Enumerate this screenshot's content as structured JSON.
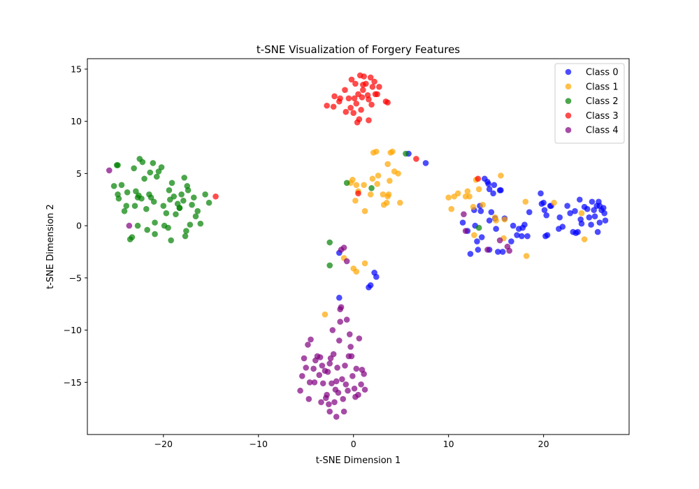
{
  "chart_data": {
    "type": "scatter",
    "title": "t-SNE Visualization of Forgery Features",
    "xlabel": "t-SNE Dimension 1",
    "ylabel": "t-SNE Dimension 2",
    "xlim": [
      -28,
      29
    ],
    "ylim": [
      -20,
      16
    ],
    "xticks": [
      -20,
      -10,
      0,
      10,
      20
    ],
    "yticks": [
      -15,
      -10,
      -5,
      0,
      5,
      10,
      15
    ],
    "grid": false,
    "legend_position": "top-right",
    "series": [
      {
        "name": "Class 0",
        "color": "#0000ff",
        "points": [
          [
            11.5,
            0.3
          ],
          [
            12.0,
            -0.5
          ],
          [
            12.3,
            -2.7
          ],
          [
            12.7,
            1.5
          ],
          [
            12.8,
            0.0
          ],
          [
            13.0,
            -1.5
          ],
          [
            13.1,
            -2.3
          ],
          [
            13.3,
            1.9
          ],
          [
            13.5,
            -1.1
          ],
          [
            13.4,
            1.4
          ],
          [
            13.8,
            4.5
          ],
          [
            14.1,
            4.2
          ],
          [
            14.2,
            4.0
          ],
          [
            14.3,
            3.5
          ],
          [
            14.3,
            0.5
          ],
          [
            14.5,
            1.3
          ],
          [
            14.7,
            3.1
          ],
          [
            14.8,
            3.9
          ],
          [
            14.9,
            0.7
          ],
          [
            15.0,
            -0.3
          ],
          [
            15.4,
            3.4
          ],
          [
            15.5,
            3.4
          ],
          [
            15.2,
            -2.5
          ],
          [
            15.7,
            -2.5
          ],
          [
            14.3,
            -2.3
          ],
          [
            15.9,
            0.7
          ],
          [
            16.6,
            -1.5
          ],
          [
            16.8,
            0.0
          ],
          [
            17.2,
            -0.9
          ],
          [
            17.4,
            -0.3
          ],
          [
            17.8,
            -0.2
          ],
          [
            18.0,
            0.1
          ],
          [
            17.7,
            -1.0
          ],
          [
            18.3,
            -1.0
          ],
          [
            18.5,
            1.3
          ],
          [
            19.7,
            3.1
          ],
          [
            19.8,
            2.1
          ],
          [
            20.0,
            2.2
          ],
          [
            20.1,
            1.5
          ],
          [
            20.3,
            1.0
          ],
          [
            20.4,
            -0.9
          ],
          [
            20.2,
            -1.0
          ],
          [
            20.7,
            1.9
          ],
          [
            20.8,
            1.9
          ],
          [
            21.6,
            -0.3
          ],
          [
            21.7,
            0.8
          ],
          [
            22.0,
            -0.1
          ],
          [
            22.5,
            1.9
          ],
          [
            22.8,
            1.2
          ],
          [
            23.1,
            -0.6
          ],
          [
            23.4,
            -0.7
          ],
          [
            23.3,
            1.4
          ],
          [
            23.6,
            -0.6
          ],
          [
            23.8,
            2.5
          ],
          [
            23.9,
            0.6
          ],
          [
            24.0,
            0.2
          ],
          [
            24.3,
            1.8
          ],
          [
            24.6,
            1.6
          ],
          [
            24.8,
            0.8
          ],
          [
            25.0,
            0.1
          ],
          [
            25.1,
            2.3
          ],
          [
            25.3,
            1.5
          ],
          [
            25.4,
            0.9
          ],
          [
            25.6,
            1.9
          ],
          [
            25.7,
            -0.6
          ],
          [
            25.8,
            2.3
          ],
          [
            25.9,
            0.3
          ],
          [
            26.1,
            1.5
          ],
          [
            26.3,
            1.7
          ],
          [
            26.4,
            1.2
          ],
          [
            26.5,
            0.5
          ],
          [
            25.9,
            1.9
          ],
          [
            -1.5,
            -6.9
          ],
          [
            -1.5,
            -2.6
          ],
          [
            1.6,
            -5.9
          ],
          [
            1.8,
            -5.7
          ],
          [
            2.2,
            -4.5
          ],
          [
            2.4,
            -4.9
          ],
          [
            5.8,
            6.9
          ],
          [
            7.6,
            6.0
          ]
        ]
      },
      {
        "name": "Class 1",
        "color": "#ffa500",
        "points": [
          [
            -0.3,
            4.1
          ],
          [
            -0.1,
            4.4
          ],
          [
            0.2,
            2.4
          ],
          [
            0.3,
            3.9
          ],
          [
            0.5,
            3.3
          ],
          [
            1.1,
            3.9
          ],
          [
            1.2,
            1.4
          ],
          [
            1.8,
            3.0
          ],
          [
            2.0,
            4.5
          ],
          [
            2.1,
            7.0
          ],
          [
            2.4,
            7.1
          ],
          [
            2.5,
            4.0
          ],
          [
            2.6,
            4.8
          ],
          [
            3.1,
            3.0
          ],
          [
            3.2,
            2.0
          ],
          [
            3.5,
            2.2
          ],
          [
            3.6,
            2.8
          ],
          [
            3.7,
            3.0
          ],
          [
            3.8,
            4.3
          ],
          [
            3.9,
            7.0
          ],
          [
            4.1,
            7.1
          ],
          [
            4.3,
            5.2
          ],
          [
            4.7,
            5.0
          ],
          [
            4.9,
            2.2
          ],
          [
            3.6,
            5.9
          ],
          [
            10.0,
            2.7
          ],
          [
            10.3,
            1.6
          ],
          [
            10.6,
            2.8
          ],
          [
            11.0,
            3.1
          ],
          [
            11.8,
            2.8
          ],
          [
            12.0,
            3.3
          ],
          [
            12.2,
            2.8
          ],
          [
            12.6,
            1.8
          ],
          [
            12.9,
            4.4
          ],
          [
            13.2,
            3.5
          ],
          [
            13.6,
            2.0
          ],
          [
            14.9,
            0.8
          ],
          [
            15.0,
            0.5
          ],
          [
            15.5,
            4.8
          ],
          [
            15.8,
            -1.2
          ],
          [
            15.9,
            0.6
          ],
          [
            18.1,
            2.3
          ],
          [
            18.2,
            -2.9
          ],
          [
            21.1,
            2.2
          ],
          [
            24.0,
            1.2
          ],
          [
            24.3,
            -1.3
          ],
          [
            -3.0,
            -8.5
          ],
          [
            -1.0,
            -3.1
          ],
          [
            0.0,
            -4.1
          ],
          [
            0.3,
            -4.4
          ],
          [
            1.2,
            -3.6
          ],
          [
            12.7,
            -0.9
          ]
        ]
      },
      {
        "name": "Class 2",
        "color": "#008000",
        "points": [
          [
            -25.2,
            3.8
          ],
          [
            -24.9,
            5.8
          ],
          [
            -24.8,
            3.0
          ],
          [
            -24.7,
            2.6
          ],
          [
            -24.4,
            3.9
          ],
          [
            -24.1,
            1.4
          ],
          [
            -23.9,
            1.9
          ],
          [
            -23.8,
            3.2
          ],
          [
            -23.5,
            -1.3
          ],
          [
            -23.3,
            -1.1
          ],
          [
            -23.1,
            5.5
          ],
          [
            -23.0,
            1.9
          ],
          [
            -22.9,
            3.3
          ],
          [
            -22.6,
            2.9
          ],
          [
            -22.7,
            0.0
          ],
          [
            -22.5,
            6.4
          ],
          [
            -22.3,
            2.6
          ],
          [
            -22.2,
            6.1
          ],
          [
            -22.0,
            4.5
          ],
          [
            -21.8,
            1.6
          ],
          [
            -21.7,
            -0.4
          ],
          [
            -21.5,
            3.0
          ],
          [
            -21.4,
            5.1
          ],
          [
            -21.3,
            2.7
          ],
          [
            -21.1,
            6.0
          ],
          [
            -21.0,
            2.3
          ],
          [
            -20.9,
            0.3
          ],
          [
            -20.9,
            -0.8
          ],
          [
            -20.7,
            4.7
          ],
          [
            -20.5,
            5.2
          ],
          [
            -20.2,
            5.6
          ],
          [
            -20.0,
            1.9
          ],
          [
            -19.9,
            0.0
          ],
          [
            -19.7,
            1.2
          ],
          [
            -19.5,
            -0.2
          ],
          [
            -19.4,
            3.4
          ],
          [
            -19.3,
            2.5
          ],
          [
            -19.2,
            -1.4
          ],
          [
            -19.1,
            4.1
          ],
          [
            -18.9,
            2.8
          ],
          [
            -18.7,
            1.1
          ],
          [
            -18.5,
            2.1
          ],
          [
            -18.3,
            1.7
          ],
          [
            -18.1,
            3.0
          ],
          [
            -17.9,
            2.4
          ],
          [
            -17.8,
            4.6
          ],
          [
            -17.7,
            -1.0
          ],
          [
            -17.6,
            -0.5
          ],
          [
            -17.5,
            3.8
          ],
          [
            -17.4,
            3.4
          ],
          [
            -17.2,
            0.1
          ],
          [
            -17.0,
            2.0
          ],
          [
            -16.8,
            2.7
          ],
          [
            -16.6,
            0.9
          ],
          [
            -16.4,
            1.4
          ],
          [
            -16.1,
            0.2
          ],
          [
            -15.6,
            3.0
          ],
          [
            -15.2,
            2.2
          ],
          [
            -18.3,
            1.7
          ],
          [
            -22.7,
            2.7
          ],
          [
            -24.8,
            5.8
          ],
          [
            -2.5,
            -1.6
          ],
          [
            -2.5,
            -3.8
          ],
          [
            -0.7,
            4.1
          ],
          [
            1.9,
            3.6
          ],
          [
            5.5,
            6.9
          ],
          [
            13.2,
            -0.2
          ]
        ]
      },
      {
        "name": "Class 3",
        "color": "#ff0000",
        "points": [
          [
            -2.8,
            11.5
          ],
          [
            -2.1,
            11.4
          ],
          [
            -2.0,
            12.4
          ],
          [
            -1.5,
            11.9
          ],
          [
            -1.4,
            12.2
          ],
          [
            -0.9,
            13.0
          ],
          [
            -0.8,
            10.9
          ],
          [
            -0.5,
            12.2
          ],
          [
            -0.3,
            11.3
          ],
          [
            -0.2,
            14.0
          ],
          [
            0.0,
            10.8
          ],
          [
            0.1,
            12.2
          ],
          [
            0.2,
            13.6
          ],
          [
            0.3,
            11.7
          ],
          [
            0.4,
            9.9
          ],
          [
            0.5,
            12.6
          ],
          [
            0.6,
            10.2
          ],
          [
            0.7,
            14.4
          ],
          [
            0.8,
            11.1
          ],
          [
            0.9,
            12.3
          ],
          [
            1.0,
            13.0
          ],
          [
            1.1,
            14.3
          ],
          [
            1.3,
            13.6
          ],
          [
            1.5,
            12.5
          ],
          [
            1.6,
            12.1
          ],
          [
            1.8,
            14.2
          ],
          [
            1.9,
            11.6
          ],
          [
            2.0,
            13.3
          ],
          [
            2.2,
            13.8
          ],
          [
            2.3,
            12.6
          ],
          [
            2.5,
            12.6
          ],
          [
            2.7,
            13.3
          ],
          [
            3.4,
            11.9
          ],
          [
            3.6,
            11.8
          ],
          [
            1.6,
            10.1
          ],
          [
            0.5,
            3.1
          ],
          [
            6.6,
            6.4
          ],
          [
            13.1,
            4.5
          ],
          [
            -14.5,
            2.8
          ],
          [
            1.0,
            13.5
          ]
        ]
      },
      {
        "name": "Class 4",
        "color": "#800080",
        "points": [
          [
            -25.7,
            5.3
          ],
          [
            -23.6,
            -0.0
          ],
          [
            -1.3,
            -2.3
          ],
          [
            -1.0,
            -2.1
          ],
          [
            -0.7,
            -3.4
          ],
          [
            11.6,
            1.1
          ],
          [
            11.8,
            -0.5
          ],
          [
            14.1,
            -2.3
          ],
          [
            15.4,
            -1.4
          ],
          [
            16.2,
            -2.0
          ],
          [
            16.4,
            -2.4
          ],
          [
            -5.6,
            -15.8
          ],
          [
            -5.4,
            -14.4
          ],
          [
            -5.2,
            -12.7
          ],
          [
            -5.0,
            -13.6
          ],
          [
            -4.8,
            -11.4
          ],
          [
            -4.7,
            -16.6
          ],
          [
            -4.6,
            -15.0
          ],
          [
            -4.5,
            -10.9
          ],
          [
            -4.2,
            -13.7
          ],
          [
            -4.1,
            -15.0
          ],
          [
            -4.0,
            -12.9
          ],
          [
            -3.8,
            -12.5
          ],
          [
            -3.6,
            -14.3
          ],
          [
            -3.5,
            -12.6
          ],
          [
            -3.4,
            -16.9
          ],
          [
            -3.3,
            -13.4
          ],
          [
            -3.2,
            -15.1
          ],
          [
            -3.0,
            -13.9
          ],
          [
            -2.9,
            -16.5
          ],
          [
            -2.8,
            -16.2
          ],
          [
            -2.7,
            -14.0
          ],
          [
            -2.6,
            -17.1
          ],
          [
            -2.5,
            -13.2
          ],
          [
            -2.4,
            -12.7
          ],
          [
            -2.3,
            -15.1
          ],
          [
            -2.2,
            -10.0
          ],
          [
            -2.1,
            -12.3
          ],
          [
            -2.0,
            -16.9
          ],
          [
            -1.9,
            -15.7
          ],
          [
            -1.8,
            -14.9
          ],
          [
            -1.7,
            -13.6
          ],
          [
            -1.6,
            -16.0
          ],
          [
            -1.5,
            -11.0
          ],
          [
            -1.4,
            -9.2
          ],
          [
            -1.3,
            -7.8
          ],
          [
            -1.2,
            -14.7
          ],
          [
            -1.1,
            -16.6
          ],
          [
            -1.0,
            -17.8
          ],
          [
            -0.9,
            -13.4
          ],
          [
            -0.8,
            -15.2
          ],
          [
            -0.7,
            -9.0
          ],
          [
            -0.6,
            -15.8
          ],
          [
            -0.5,
            -12.5
          ],
          [
            -0.3,
            -11.6
          ],
          [
            -0.2,
            -12.5
          ],
          [
            -0.1,
            -14.4
          ],
          [
            0.1,
            -15.6
          ],
          [
            0.2,
            -16.4
          ],
          [
            0.3,
            -13.7
          ],
          [
            0.5,
            -16.2
          ],
          [
            0.6,
            -10.8
          ],
          [
            0.8,
            -15.2
          ],
          [
            0.9,
            -13.8
          ],
          [
            1.1,
            -14.2
          ],
          [
            1.2,
            -15.7
          ],
          [
            -1.8,
            -18.3
          ],
          [
            -2.5,
            -17.8
          ],
          [
            -1.4,
            -8.0
          ],
          [
            -0.4,
            -10.4
          ]
        ]
      }
    ]
  }
}
